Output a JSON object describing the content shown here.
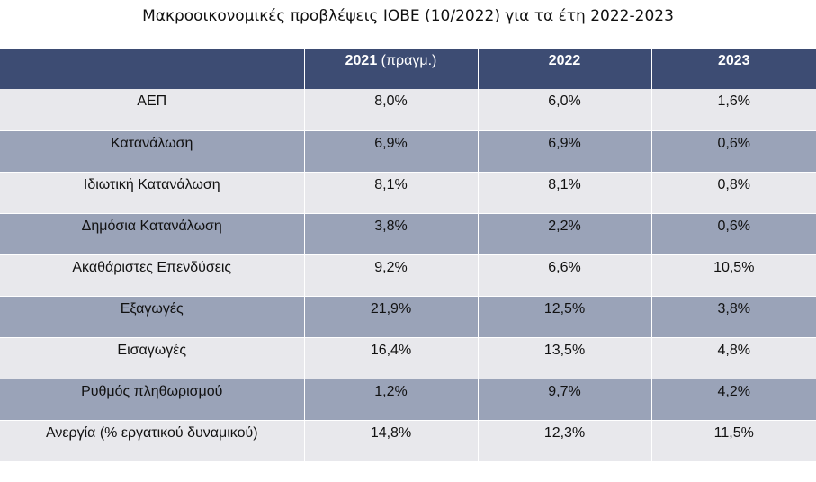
{
  "chart_data": {
    "type": "table",
    "title": "Μακροοικονομικές προβλέψεις ΙΟΒΕ (10/2022) για τα έτη 2022-2023",
    "columns": [
      {
        "year": "2021",
        "note": " (πραγμ.)"
      },
      {
        "year": "2022",
        "note": ""
      },
      {
        "year": "2023",
        "note": ""
      }
    ],
    "rows": [
      {
        "label": "ΑΕΠ",
        "values": [
          "8,0%",
          "6,0%",
          "1,6%"
        ]
      },
      {
        "label": "Κατανάλωση",
        "values": [
          "6,9%",
          "6,9%",
          "0,6%"
        ]
      },
      {
        "label": "Ιδιωτική Κατανάλωση",
        "values": [
          "8,1%",
          "8,1%",
          "0,8%"
        ]
      },
      {
        "label": "Δημόσια Κατανάλωση",
        "values": [
          "3,8%",
          "2,2%",
          "0,6%"
        ]
      },
      {
        "label": "Ακαθάριστες Επενδύσεις",
        "values": [
          "9,2%",
          "6,6%",
          "10,5%"
        ]
      },
      {
        "label": "Εξαγωγές",
        "values": [
          "21,9%",
          "12,5%",
          "3,8%"
        ]
      },
      {
        "label": "Εισαγωγές",
        "values": [
          "16,4%",
          "13,5%",
          "4,8%"
        ]
      },
      {
        "label": "Ρυθμός πληθωρισμού",
        "values": [
          "1,2%",
          "9,7%",
          "4,2%"
        ]
      },
      {
        "label": "Ανεργία (% εργατικού δυναμικού)",
        "values": [
          "14,8%",
          "12,3%",
          "11,5%"
        ]
      }
    ],
    "colors": {
      "header": "#3d4c73",
      "row_light": "#e8e8ec",
      "row_dark": "#9aa3b8"
    }
  }
}
